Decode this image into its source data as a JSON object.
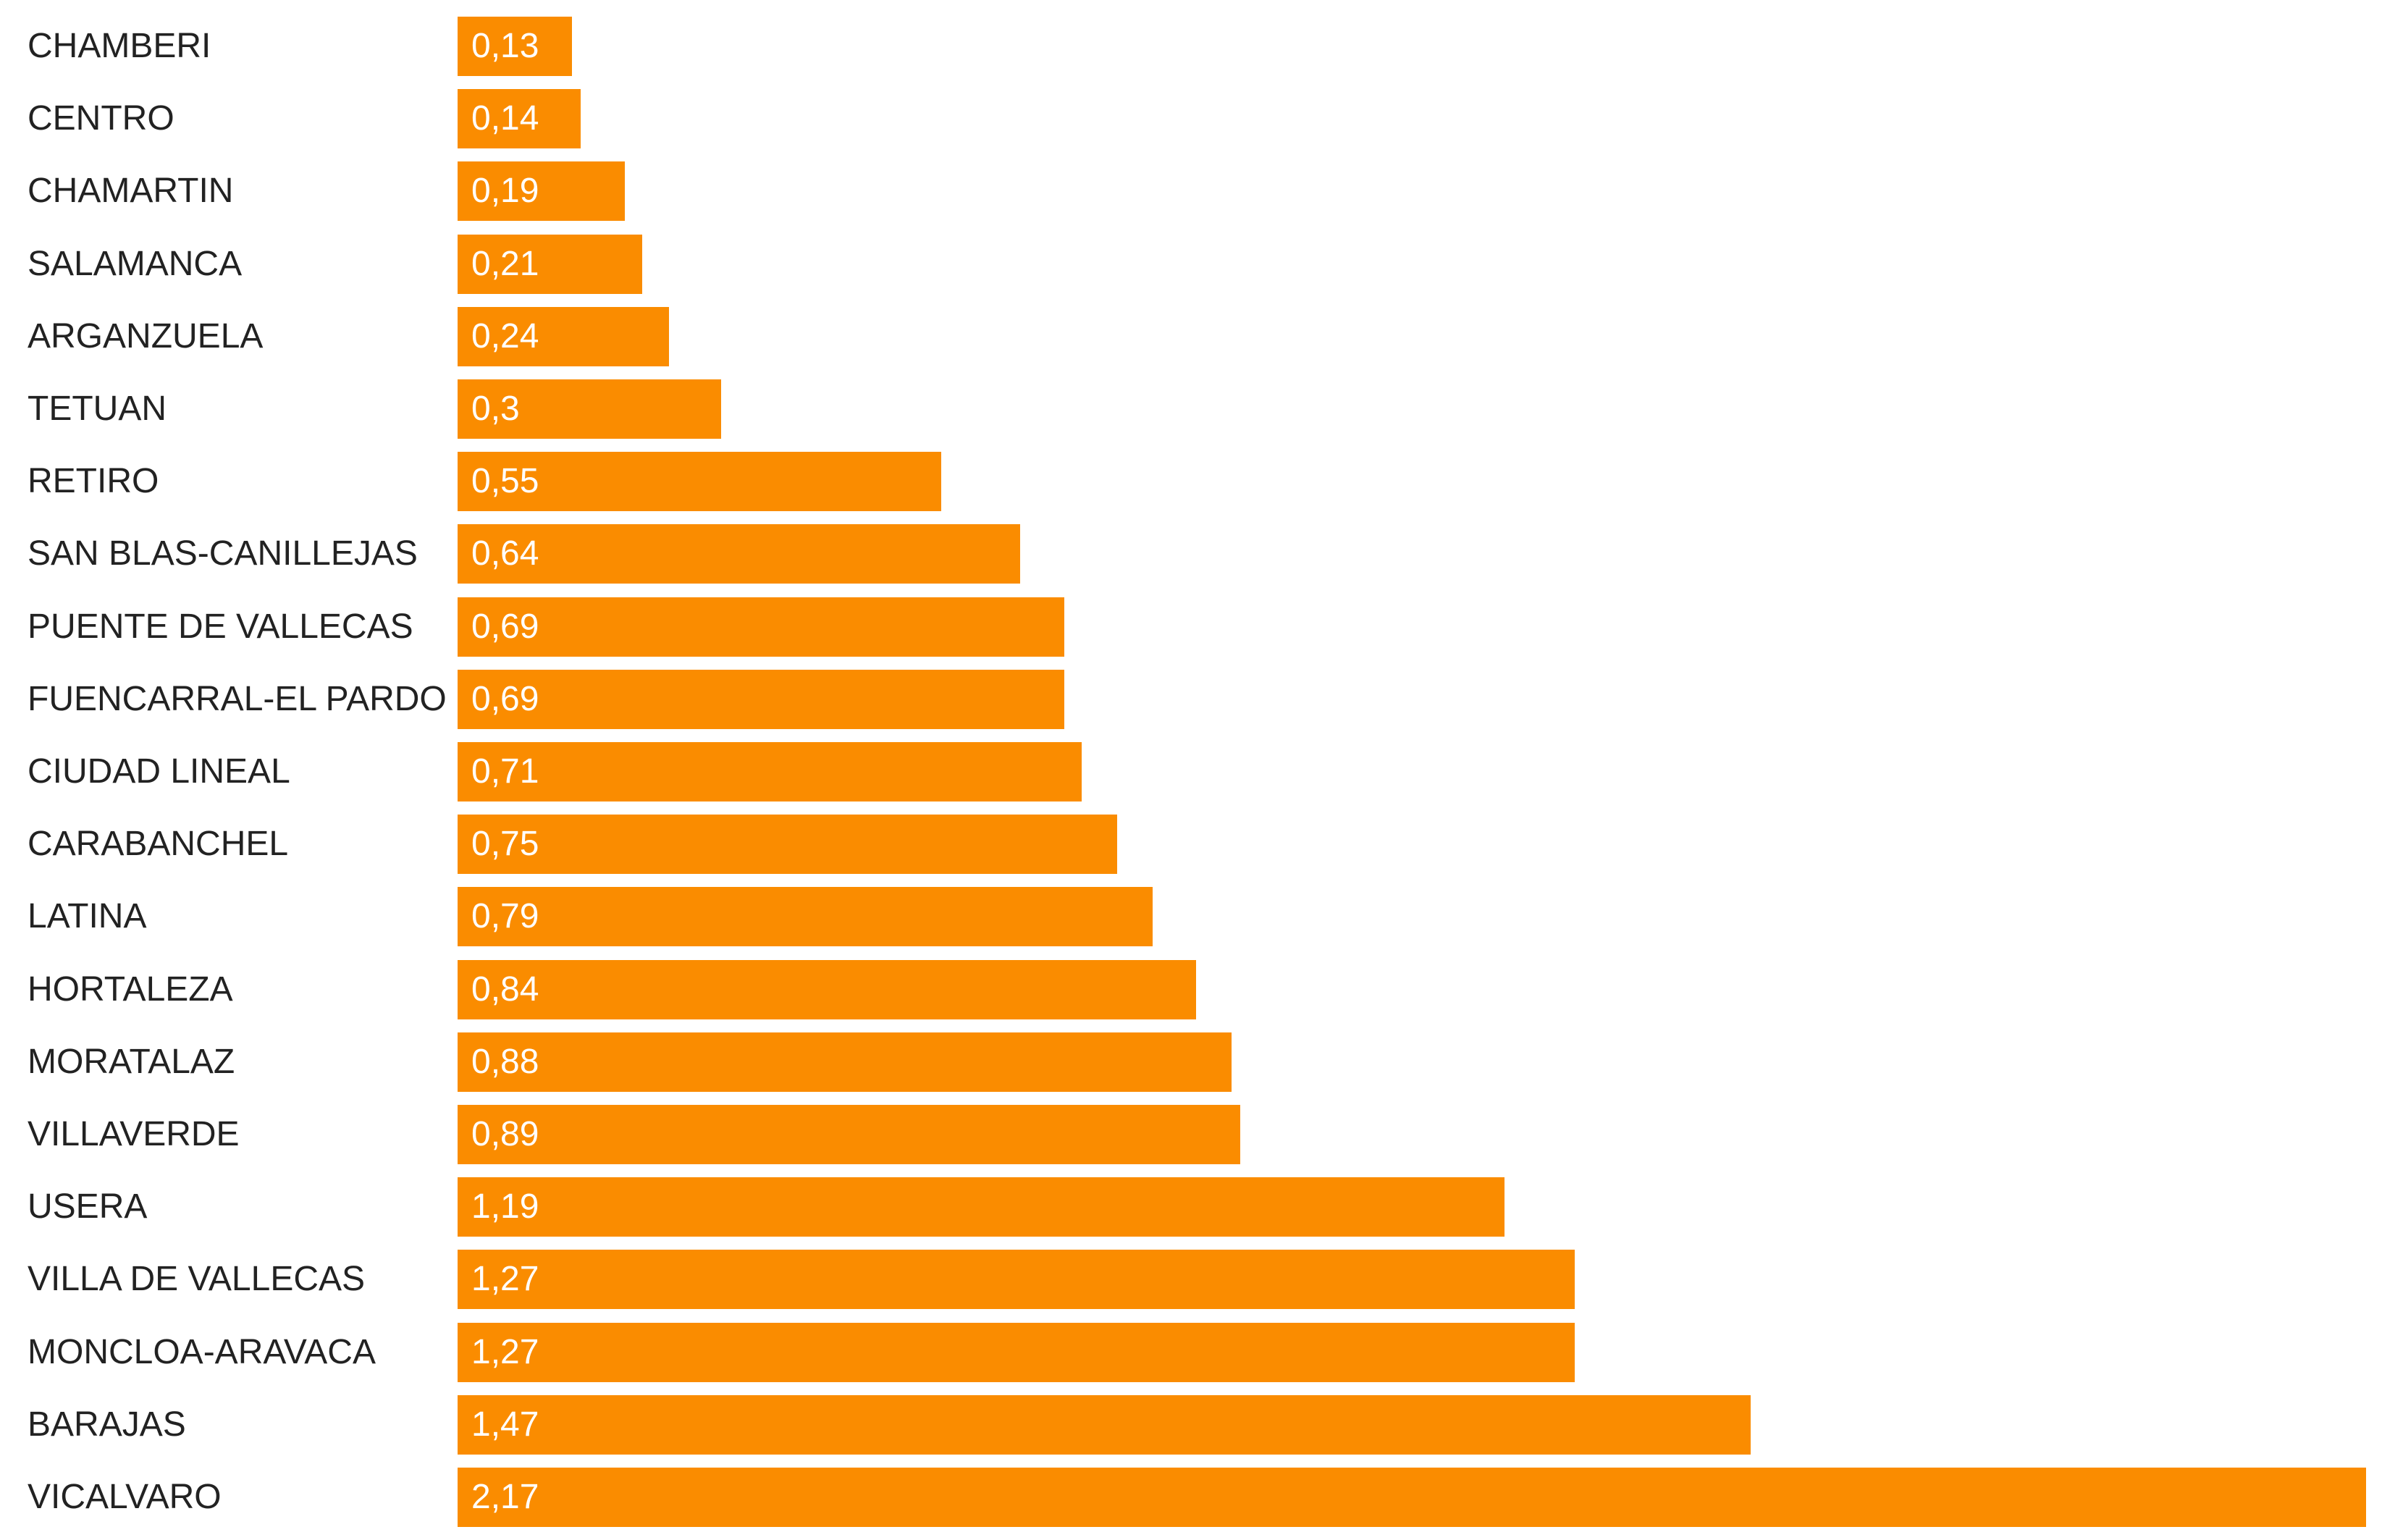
{
  "chart_data": {
    "type": "bar",
    "orientation": "horizontal",
    "categories": [
      "CHAMBERI",
      "CENTRO",
      "CHAMARTIN",
      "SALAMANCA",
      "ARGANZUELA",
      "TETUAN",
      "RETIRO",
      "SAN BLAS-CANILLEJAS",
      "PUENTE DE VALLECAS",
      "FUENCARRAL-EL PARDO",
      "CIUDAD LINEAL",
      "CARABANCHEL",
      "LATINA",
      "HORTALEZA",
      "MORATALAZ",
      "VILLAVERDE",
      "USERA",
      "VILLA DE VALLECAS",
      "MONCLOA-ARAVACA",
      "BARAJAS",
      "VICALVARO"
    ],
    "values": [
      0.13,
      0.14,
      0.19,
      0.21,
      0.24,
      0.3,
      0.55,
      0.64,
      0.69,
      0.69,
      0.71,
      0.75,
      0.79,
      0.84,
      0.88,
      0.89,
      1.19,
      1.27,
      1.27,
      1.47,
      2.17
    ],
    "value_labels": [
      "0,13",
      "0,14",
      "0,19",
      "0,21",
      "0,24",
      "0,3",
      "0,55",
      "0,64",
      "0,69",
      "0,69",
      "0,71",
      "0,75",
      "0,79",
      "0,84",
      "0,88",
      "0,89",
      "1,19",
      "1,27",
      "1,27",
      "1,47",
      "2,17"
    ],
    "xlim": [
      0,
      2.17
    ],
    "grid": false,
    "legend": "none",
    "title": "",
    "xlabel": "",
    "ylabel": "",
    "bar_color": "#FA8C00",
    "label_color": "#222222",
    "value_label_color": "#FFFFFF"
  }
}
